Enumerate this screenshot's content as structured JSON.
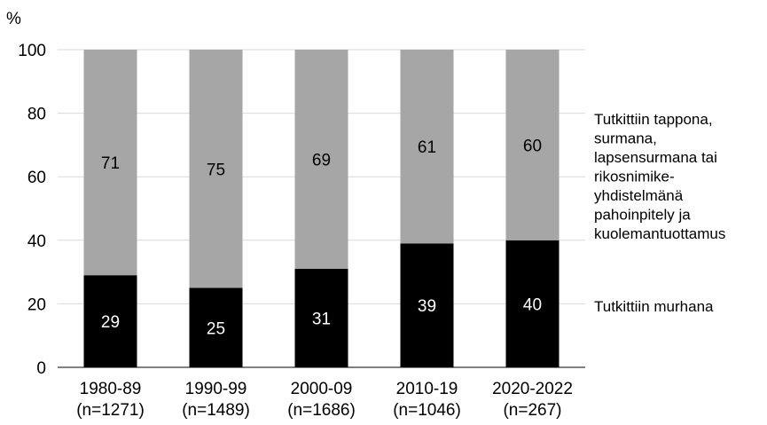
{
  "chart_data": {
    "type": "bar",
    "stacked": true,
    "percent": true,
    "ylabel": "%",
    "ylim": [
      0,
      100
    ],
    "yticks": [
      0,
      20,
      40,
      60,
      80,
      100
    ],
    "grid": true,
    "legend_position": "right",
    "categories": [
      [
        "1980-89",
        "(n=1271)"
      ],
      [
        "1990-99",
        "(n=1489)"
      ],
      [
        "2000-09",
        "(n=1686)"
      ],
      [
        "2010-19",
        "(n=1046)"
      ],
      [
        "2020-2022",
        "(n=267)"
      ]
    ],
    "series": [
      {
        "name": "Tutkittiin murhana",
        "legend_lines": [
          "Tutkittiin murhana"
        ],
        "values": [
          29,
          25,
          31,
          39,
          40
        ],
        "color": "#000000",
        "label_color": "#ffffff"
      },
      {
        "name": "Tutkittiin tappona, surmana, lapsensurmana tai rikosnimike-yhdistelmänä pahoinpitely ja kuolemantuottamus",
        "legend_lines": [
          "Tutkittiin tappona,",
          "surmana,",
          "lapsensurmana tai",
          "rikosnimike-",
          "yhdistelmänä",
          "pahoinpitely ja",
          "kuolemantuottamus"
        ],
        "values": [
          71,
          75,
          69,
          61,
          60
        ],
        "color": "#a6a6a6",
        "label_color": "#000000"
      }
    ]
  }
}
